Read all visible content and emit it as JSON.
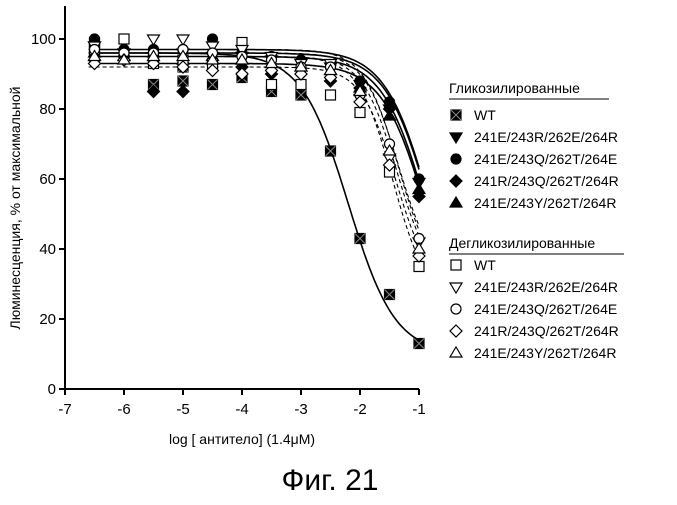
{
  "chart_data": {
    "type": "scatter",
    "xlabel": "log [ антитело] (1.4μM)",
    "ylabel": "Люминесценция, % от максимальной",
    "xlim": [
      -7,
      -1
    ],
    "ylim": [
      0,
      110
    ],
    "x_ticks": [
      "-7",
      "-6",
      "-5",
      "-4",
      "-3",
      "-2",
      "-1"
    ],
    "y_ticks": [
      "0",
      "20",
      "40",
      "60",
      "80",
      "100"
    ],
    "grid": false,
    "legend_position": "right",
    "groups": [
      {
        "name": "Гликозилированные",
        "series": [
          {
            "name": "WT",
            "marker": "filled-square-x",
            "color": "#000000",
            "fit": "solid",
            "x": [
              -6.5,
              -6.5,
              -5.5,
              -5.0,
              -5.0,
              -4.5,
              -4.0,
              -3.5,
              -3.0,
              -2.5,
              -2.0,
              -1.5,
              -1.0
            ],
            "y": [
              99,
              97,
              87,
              88,
              92,
              87,
              89,
              85,
              84,
              68,
              43,
              27,
              13
            ],
            "fit_top": 96,
            "fit_bottom": 10,
            "fit_ec50": -2.2,
            "fit_hill": 1.1
          },
          {
            "name": "241E/243R/262E/264R",
            "marker": "filled-triangle-down",
            "color": "#000000",
            "fit": "solid",
            "x": [
              -6.5,
              -6.0,
              -5.5,
              -5.0,
              -4.5,
              -4.0,
              -3.5,
              -3.0,
              -2.5,
              -2.0,
              -1.5,
              -1.0
            ],
            "y": [
              98,
              96,
              95,
              96,
              95,
              95,
              94,
              93,
              92,
              87,
              80,
              59
            ],
            "fit_top": 96,
            "fit_bottom": 0,
            "fit_ec50": -0.75,
            "fit_hill": 1.1
          },
          {
            "name": "241E/243Q/262T/264E",
            "marker": "filled-circle",
            "color": "#000000",
            "fit": "solid",
            "x": [
              -6.5,
              -6.0,
              -5.5,
              -5.0,
              -4.5,
              -4.0,
              -3.5,
              -3.0,
              -2.5,
              -2.0,
              -1.5,
              -1.0
            ],
            "y": [
              100,
              97,
              97,
              97,
              100,
              96,
              95,
              94,
              92,
              88,
              82,
              60
            ],
            "fit_top": 97,
            "fit_bottom": 0,
            "fit_ec50": -0.75,
            "fit_hill": 1.1
          },
          {
            "name": "241R/243Q/262T/264R",
            "marker": "filled-diamond",
            "color": "#000000",
            "fit": "solid",
            "x": [
              -6.5,
              -6.0,
              -5.5,
              -5.0,
              -4.5,
              -4.0,
              -3.5,
              -3.0,
              -2.5,
              -2.0,
              -1.5,
              -1.0
            ],
            "y": [
              94,
              95,
              85,
              85,
              93,
              92,
              90,
              90,
              88,
              86,
              80,
              55
            ],
            "fit_top": 93,
            "fit_bottom": 0,
            "fit_ec50": -0.8,
            "fit_hill": 1.1
          },
          {
            "name": "241E/243Y/262T/264R",
            "marker": "filled-triangle-up",
            "color": "#000000",
            "fit": "solid",
            "x": [
              -6.5,
              -6.0,
              -5.5,
              -5.0,
              -4.5,
              -4.0,
              -3.5,
              -3.0,
              -2.5,
              -2.0,
              -1.5,
              -1.0
            ],
            "y": [
              96,
              95,
              96,
              94,
              95,
              94,
              93,
              92,
              91,
              86,
              78,
              57
            ],
            "fit_top": 95,
            "fit_bottom": 0,
            "fit_ec50": -0.8,
            "fit_hill": 1.1
          }
        ]
      },
      {
        "name": "Дегликозилированные",
        "series": [
          {
            "name": "WT",
            "marker": "open-square",
            "color": "#000000",
            "fit": "dashed",
            "x": [
              -6.5,
              -6.0,
              -5.5,
              -5.0,
              -4.5,
              -4.0,
              -3.5,
              -3.0,
              -2.5,
              -2.0,
              -1.5,
              -1.0
            ],
            "y": [
              97,
              100,
              93,
              94,
              93,
              99,
              87,
              87,
              84,
              79,
              62,
              35
            ],
            "fit_top": 95,
            "fit_bottom": 25,
            "fit_ec50": -1.45,
            "fit_hill": 1.5
          },
          {
            "name": "241E/243R/262E/264R",
            "marker": "open-triangle-down",
            "color": "#000000",
            "fit": "dashed",
            "x": [
              -6.5,
              -6.0,
              -5.5,
              -5.0,
              -4.5,
              -4.0,
              -3.5,
              -3.0,
              -2.5,
              -2.0,
              -1.5,
              -1.0
            ],
            "y": [
              98,
              96,
              100,
              100,
              98,
              97,
              95,
              93,
              93,
              83,
              66,
              42
            ],
            "fit_top": 97,
            "fit_bottom": 30,
            "fit_ec50": -1.35,
            "fit_hill": 1.5
          },
          {
            "name": "241E/243Q/262T/264E",
            "marker": "open-circle",
            "color": "#000000",
            "fit": "dashed",
            "x": [
              -6.5,
              -6.0,
              -5.5,
              -5.0,
              -4.5,
              -4.0,
              -3.5,
              -3.0,
              -2.5,
              -2.0,
              -1.5,
              -1.0
            ],
            "y": [
              97,
              96,
              96,
              97,
              96,
              95,
              94,
              92,
              92,
              84,
              70,
              43
            ],
            "fit_top": 96,
            "fit_bottom": 32,
            "fit_ec50": -1.35,
            "fit_hill": 1.5
          },
          {
            "name": "241R/243Q/262T/264R",
            "marker": "open-diamond",
            "color": "#000000",
            "fit": "dashed",
            "x": [
              -6.5,
              -6.0,
              -5.5,
              -5.0,
              -4.5,
              -4.0,
              -3.5,
              -3.0,
              -2.5,
              -2.0,
              -1.5,
              -1.0
            ],
            "y": [
              93,
              94,
              93,
              92,
              91,
              90,
              91,
              90,
              89,
              82,
              64,
              38
            ],
            "fit_top": 92,
            "fit_bottom": 28,
            "fit_ec50": -1.4,
            "fit_hill": 1.5
          },
          {
            "name": "241E/243Y/262T/264R",
            "marker": "open-triangle-up",
            "color": "#000000",
            "fit": "dashed",
            "x": [
              -6.5,
              -6.0,
              -5.5,
              -5.0,
              -4.5,
              -4.0,
              -3.5,
              -3.0,
              -2.5,
              -2.0,
              -1.5,
              -1.0
            ],
            "y": [
              95,
              94,
              95,
              95,
              94,
              94,
              93,
              92,
              91,
              85,
              68,
              40
            ],
            "fit_top": 95,
            "fit_bottom": 30,
            "fit_ec50": -1.38,
            "fit_hill": 1.5
          }
        ]
      }
    ]
  },
  "legend": {
    "glyco_header": "Гликозилированные",
    "deglyco_header": "Дегликозилированные",
    "glyco_items": [
      "WT",
      "241E/243R/262E/264R",
      "241E/243Q/262T/264E",
      "241R/243Q/262T/264R",
      "241E/243Y/262T/264R"
    ],
    "deglyco_items": [
      "WT",
      "241E/243R/262E/264R",
      "241E/243Q/262T/264E",
      "241R/243Q/262T/264R",
      "241E/243Y/262T/264R"
    ]
  },
  "caption": "Фиг. 21"
}
